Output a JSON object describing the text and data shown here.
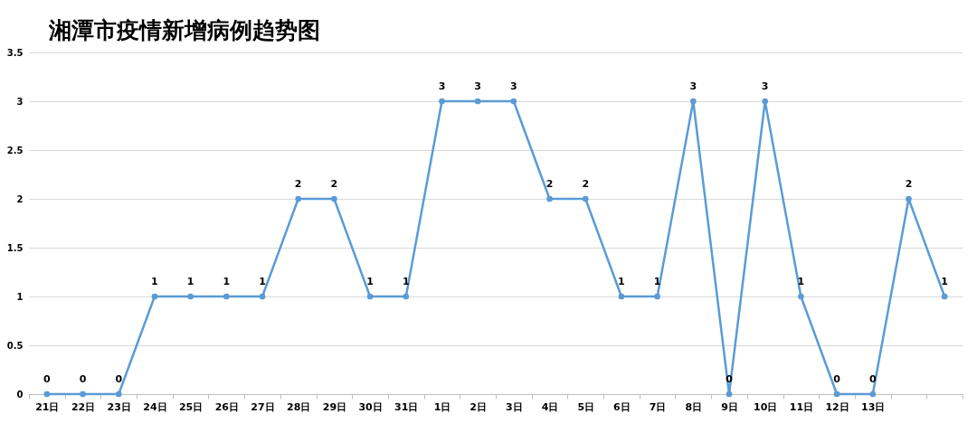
{
  "chart_data": {
    "type": "line",
    "title": "湘潭市疫情新增病例趋势图",
    "categories": [
      "21日",
      "22日",
      "23日",
      "24日",
      "25日",
      "26日",
      "27日",
      "28日",
      "29日",
      "30日",
      "31日",
      "1日",
      "2日",
      "3日",
      "4日",
      "5日",
      "6日",
      "7日",
      "8日",
      "9日",
      "10日",
      "11日",
      "12日",
      "13日",
      null,
      null
    ],
    "values": [
      0,
      0,
      0,
      1,
      1,
      1,
      1,
      2,
      2,
      1,
      1,
      3,
      3,
      3,
      2,
      2,
      1,
      1,
      3,
      0,
      3,
      1,
      0,
      0,
      2,
      1
    ],
    "color": "#5b9bd5",
    "ylim": [
      0,
      3.5
    ],
    "yticks": [
      0,
      0.5,
      1,
      1.5,
      2,
      2.5,
      3,
      3.5
    ],
    "grid": "y",
    "marker": "circle",
    "data_labels": true
  }
}
